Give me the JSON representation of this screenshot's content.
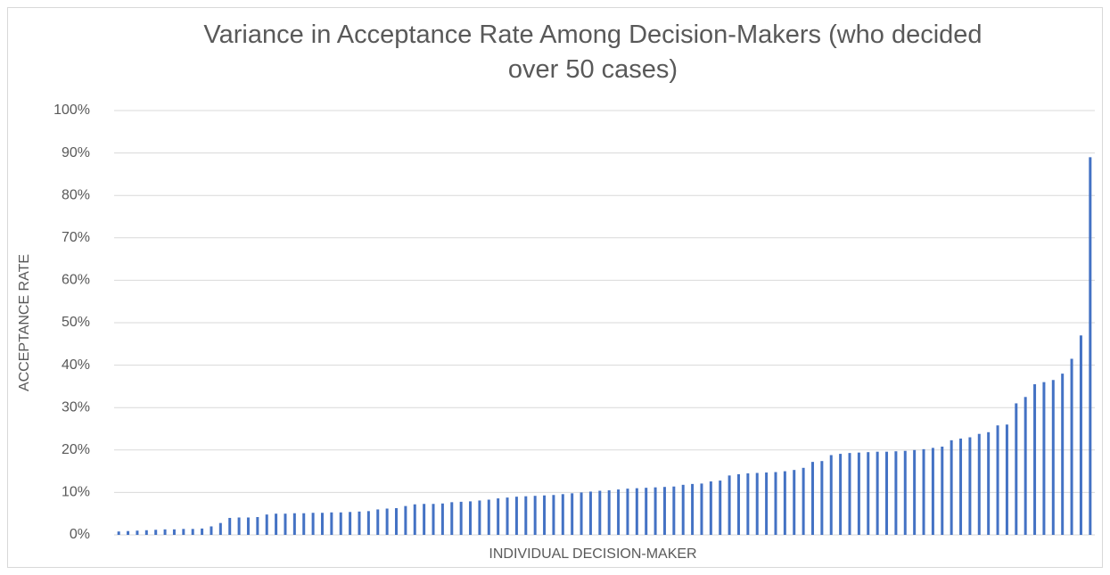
{
  "chart_data": {
    "type": "bar",
    "title": "Variance in Acceptance Rate Among Decision-Makers (who decided over 50 cases)",
    "x_label": "INDIVIDUAL DECISION-MAKER",
    "y_label": "ACCEPTANCE RATE",
    "color": "#4472c4",
    "values": [
      0.8,
      0.9,
      1,
      1.1,
      1.2,
      1.3,
      1.3,
      1.4,
      1.4,
      1.5,
      2,
      2.8,
      4,
      4.1,
      4.1,
      4.2,
      4.8,
      5,
      5,
      5.1,
      5.1,
      5.2,
      5.2,
      5.3,
      5.3,
      5.4,
      5.5,
      5.6,
      6,
      6.2,
      6.3,
      6.8,
      7.2,
      7.3,
      7.3,
      7.4,
      7.7,
      7.8,
      7.9,
      8.1,
      8.3,
      8.6,
      8.8,
      9,
      9.1,
      9.2,
      9.3,
      9.4,
      9.6,
      9.8,
      10,
      10.2,
      10.4,
      10.5,
      10.7,
      10.9,
      11,
      11.1,
      11.2,
      11.3,
      11.4,
      11.8,
      12,
      12.1,
      12.6,
      12.8,
      14,
      14.3,
      14.5,
      14.6,
      14.7,
      14.8,
      15,
      15.3,
      15.8,
      17.2,
      17.4,
      18.8,
      19.1,
      19.3,
      19.4,
      19.5,
      19.6,
      19.6,
      19.7,
      19.8,
      20,
      20.2,
      20.5,
      20.8,
      22.3,
      22.7,
      23,
      23.8,
      24.2,
      25.8,
      26,
      31,
      32.5,
      35.5,
      36,
      36.5,
      38,
      41.5,
      47,
      89
    ],
    "ylim": [
      0,
      100
    ],
    "yticks": [
      {
        "value": 0,
        "label": "0%"
      },
      {
        "value": 10,
        "label": "10%"
      },
      {
        "value": 20,
        "label": "20%"
      },
      {
        "value": 30,
        "label": "30%"
      },
      {
        "value": 40,
        "label": "40%"
      },
      {
        "value": 50,
        "label": "50%"
      },
      {
        "value": 60,
        "label": "60%"
      },
      {
        "value": 70,
        "label": "70%"
      },
      {
        "value": 80,
        "label": "80%"
      },
      {
        "value": 90,
        "label": "90%"
      },
      {
        "value": 100,
        "label": "100%"
      }
    ],
    "grid": true
  }
}
